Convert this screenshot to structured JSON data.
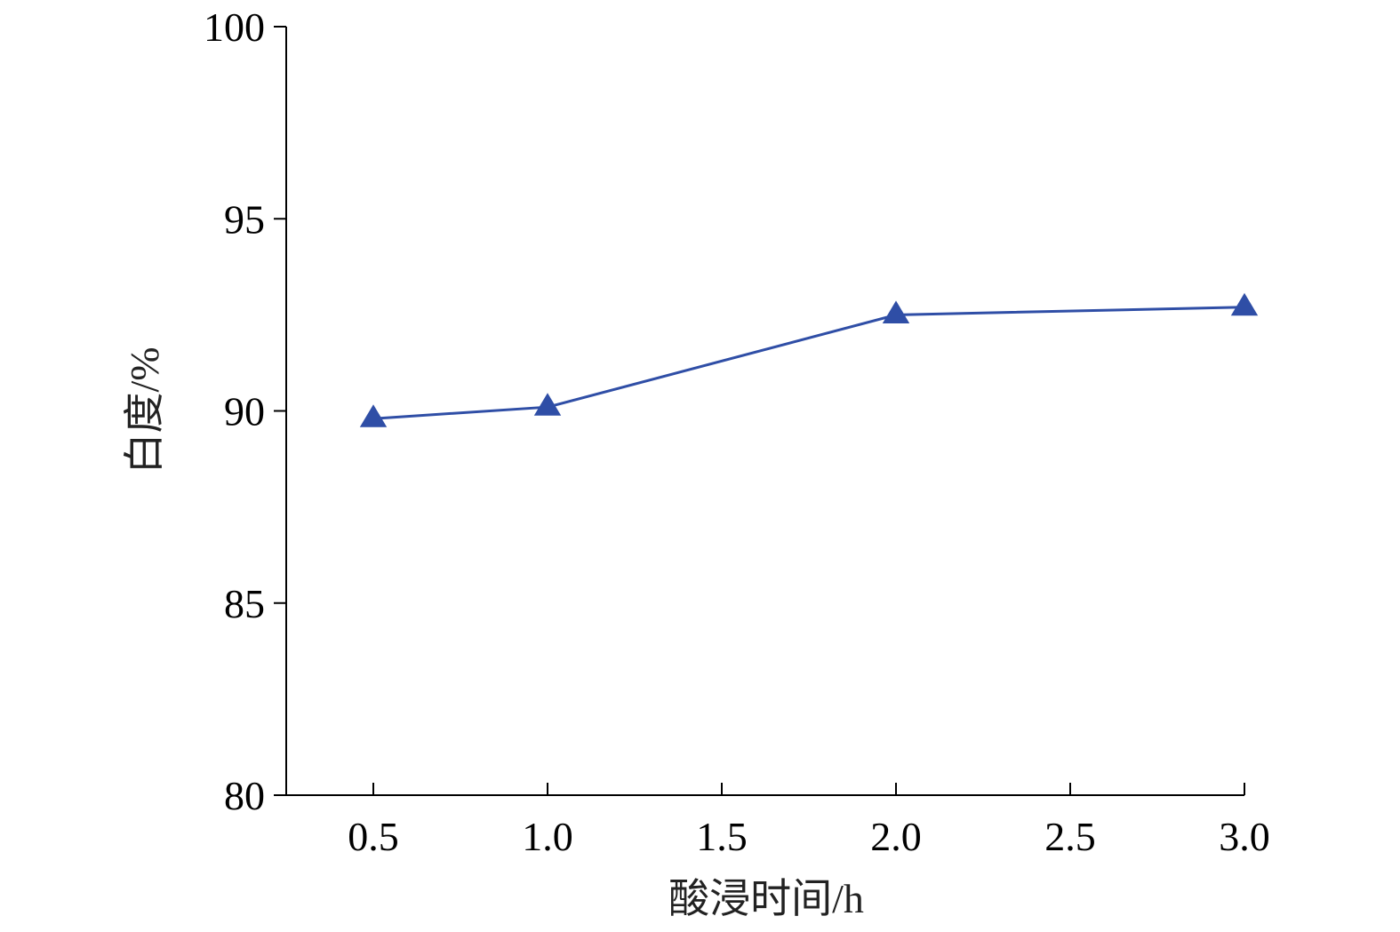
{
  "chart_data": {
    "type": "line",
    "xlabel": "酸浸时间/h",
    "ylabel": "白度/%",
    "xlim": [
      0.25,
      3.0
    ],
    "ylim": [
      80,
      100
    ],
    "xticks": [
      "0.5",
      "1.0",
      "1.5",
      "2.0",
      "2.5",
      "3.0"
    ],
    "yticks": [
      "80",
      "85",
      "90",
      "95",
      "100"
    ],
    "grid": false,
    "marker": "triangle",
    "color": "#2f4ea6",
    "series": [
      {
        "x": [
          0.5,
          1.0,
          2.0,
          3.0
        ],
        "values": [
          89.8,
          90.1,
          92.5,
          92.7
        ]
      }
    ]
  }
}
